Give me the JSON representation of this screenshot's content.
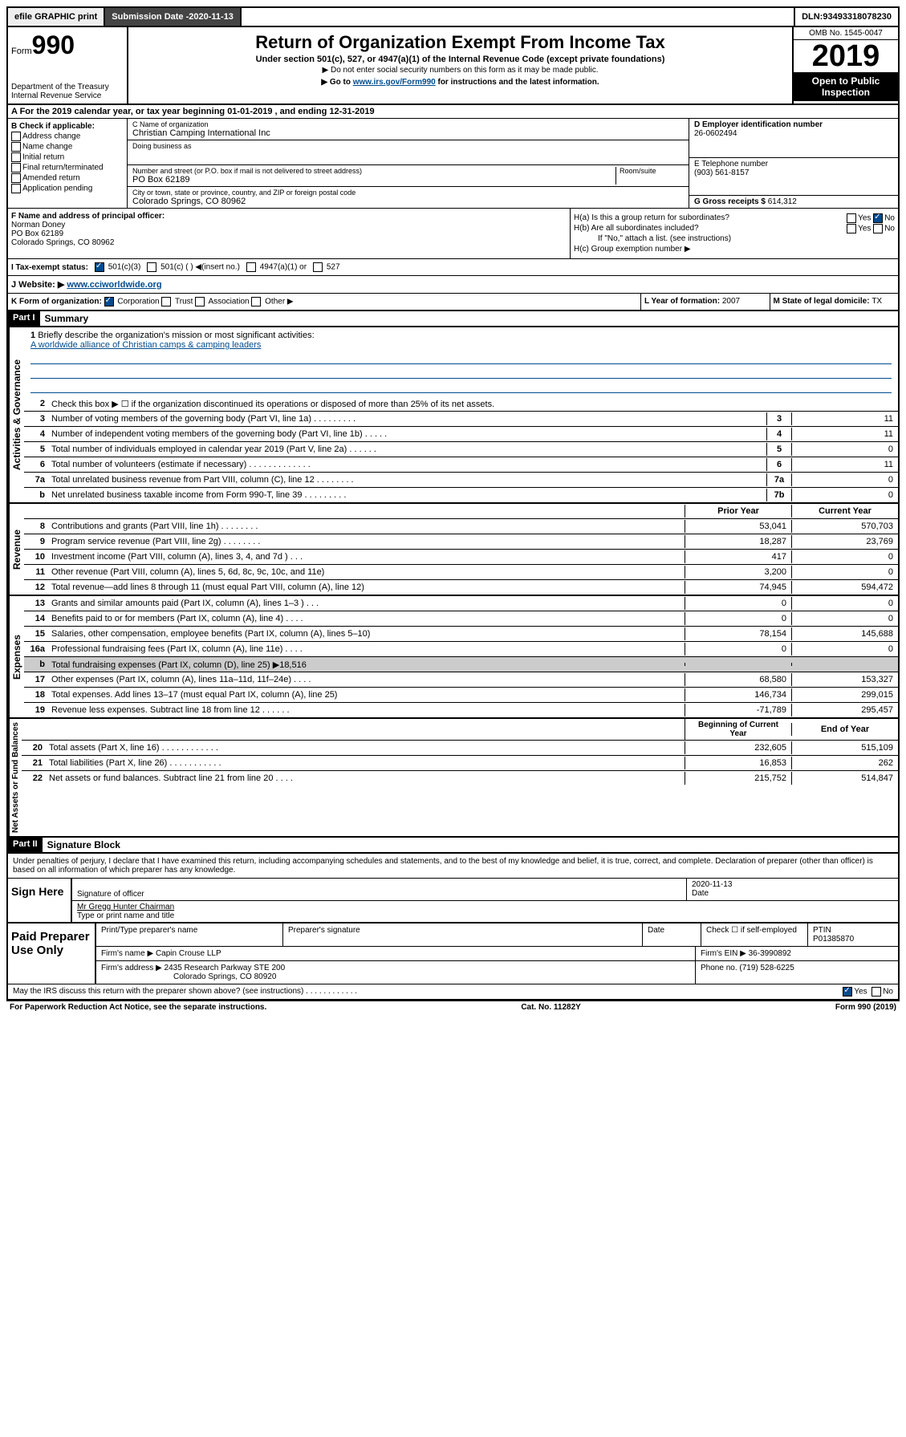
{
  "topbar": {
    "efile": "efile GRAPHIC print",
    "subdate_lbl": "Submission Date - ",
    "subdate": "2020-11-13",
    "dln_lbl": "DLN: ",
    "dln": "93493318078230"
  },
  "header": {
    "form_label": "Form",
    "form_num": "990",
    "dept": "Department of the Treasury\nInternal Revenue Service",
    "title": "Return of Organization Exempt From Income Tax",
    "sub": "Under section 501(c), 527, or 4947(a)(1) of the Internal Revenue Code (except private foundations)",
    "note1": "▶ Do not enter social security numbers on this form as it may be made public.",
    "goto_pre": "▶ Go to ",
    "goto_link": "www.irs.gov/Form990",
    "goto_post": " for instructions and the latest information.",
    "omb": "OMB No. 1545-0047",
    "year": "2019",
    "inspect": "Open to Public Inspection"
  },
  "period": {
    "text": "A For the 2019 calendar year, or tax year beginning 01-01-2019   , and ending 12-31-2019"
  },
  "colB": {
    "title": "B Check if applicable:",
    "items": [
      "Address change",
      "Name change",
      "Initial return",
      "Final return/terminated",
      "Amended return",
      "Application pending"
    ]
  },
  "colC": {
    "name_lbl": "C Name of organization",
    "name": "Christian Camping International Inc",
    "dba_lbl": "Doing business as",
    "dba": "",
    "addr_lbl": "Number and street (or P.O. box if mail is not delivered to street address)",
    "room_lbl": "Room/suite",
    "addr": "PO Box 62189",
    "city_lbl": "City or town, state or province, country, and ZIP or foreign postal code",
    "city": "Colorado Springs, CO  80962"
  },
  "colD": {
    "ein_lbl": "D Employer identification number",
    "ein": "26-0602494",
    "phone_lbl": "E Telephone number",
    "phone": "(903) 561-8157",
    "gross_lbl": "G Gross receipts $ ",
    "gross": "614,312"
  },
  "F": {
    "lbl": "F  Name and address of principal officer:",
    "name": "Norman Doney",
    "addr1": "PO Box 62189",
    "addr2": "Colorado Springs, CO  80962"
  },
  "H": {
    "a": "H(a)  Is this a group return for subordinates?",
    "b": "H(b)  Are all subordinates included?",
    "b_note": "If \"No,\" attach a list. (see instructions)",
    "c": "H(c)  Group exemption number ▶"
  },
  "I": {
    "lbl": "I  Tax-exempt status:",
    "opts": [
      "501(c)(3)",
      "501(c) (  ) ◀(insert no.)",
      "4947(a)(1) or",
      "527"
    ]
  },
  "J": {
    "lbl": "J  Website: ▶",
    "val": "www.cciworldwide.org"
  },
  "K": {
    "lbl": "K Form of organization:",
    "opts": [
      "Corporation",
      "Trust",
      "Association",
      "Other ▶"
    ],
    "L_lbl": "L Year of formation: ",
    "L_val": "2007",
    "M_lbl": "M State of legal domicile: ",
    "M_val": "TX"
  },
  "part1": {
    "label": "Part I",
    "title": "Summary",
    "vtabs": {
      "gov": "Activities & Governance",
      "rev": "Revenue",
      "exp": "Expenses",
      "net": "Net Assets or Fund Balances"
    },
    "q1_lbl": "Briefly describe the organization's mission or most significant activities:",
    "q1_val": "A worldwide alliance of Christian camps & camping leaders",
    "q2": "Check this box ▶ ☐ if the organization discontinued its operations or disposed of more than 25% of its net assets.",
    "lines_gov": [
      {
        "n": "3",
        "d": "Number of voting members of the governing body (Part VI, line 1a)  .   .   .   .   .   .   .   .   .",
        "box": "3",
        "v": "11"
      },
      {
        "n": "4",
        "d": "Number of independent voting members of the governing body (Part VI, line 1b)  .   .   .   .   .",
        "box": "4",
        "v": "11"
      },
      {
        "n": "5",
        "d": "Total number of individuals employed in calendar year 2019 (Part V, line 2a)  .   .   .   .   .   .",
        "box": "5",
        "v": "0"
      },
      {
        "n": "6",
        "d": "Total number of volunteers (estimate if necessary)  .   .   .   .   .   .   .   .   .   .   .   .   .",
        "box": "6",
        "v": "11"
      },
      {
        "n": "7a",
        "d": "Total unrelated business revenue from Part VIII, column (C), line 12  .   .   .   .   .   .   .   .",
        "box": "7a",
        "v": "0"
      },
      {
        "n": "b",
        "d": "Net unrelated business taxable income from Form 990-T, line 39  .   .   .   .   .   .   .   .   .",
        "box": "7b",
        "v": "0"
      }
    ],
    "col_hdrs": {
      "prior": "Prior Year",
      "current": "Current Year"
    },
    "lines_rev": [
      {
        "n": "8",
        "d": "Contributions and grants (Part VIII, line 1h)  .   .   .   .   .   .   .   .",
        "p": "53,041",
        "c": "570,703"
      },
      {
        "n": "9",
        "d": "Program service revenue (Part VIII, line 2g)  .   .   .   .   .   .   .   .",
        "p": "18,287",
        "c": "23,769"
      },
      {
        "n": "10",
        "d": "Investment income (Part VIII, column (A), lines 3, 4, and 7d )  .   .   .",
        "p": "417",
        "c": "0"
      },
      {
        "n": "11",
        "d": "Other revenue (Part VIII, column (A), lines 5, 6d, 8c, 9c, 10c, and 11e)",
        "p": "3,200",
        "c": "0"
      },
      {
        "n": "12",
        "d": "Total revenue—add lines 8 through 11 (must equal Part VIII, column (A), line 12)",
        "p": "74,945",
        "c": "594,472"
      }
    ],
    "lines_exp": [
      {
        "n": "13",
        "d": "Grants and similar amounts paid (Part IX, column (A), lines 1–3 )  .   .   .",
        "p": "0",
        "c": "0"
      },
      {
        "n": "14",
        "d": "Benefits paid to or for members (Part IX, column (A), line 4)  .   .   .   .",
        "p": "0",
        "c": "0"
      },
      {
        "n": "15",
        "d": "Salaries, other compensation, employee benefits (Part IX, column (A), lines 5–10)",
        "p": "78,154",
        "c": "145,688"
      },
      {
        "n": "16a",
        "d": "Professional fundraising fees (Part IX, column (A), line 11e)  .   .   .   .",
        "p": "0",
        "c": "0"
      },
      {
        "n": "b",
        "d": "Total fundraising expenses (Part IX, column (D), line 25) ▶18,516",
        "p": "",
        "c": "",
        "gray": true
      },
      {
        "n": "17",
        "d": "Other expenses (Part IX, column (A), lines 11a–11d, 11f–24e)  .   .   .   .",
        "p": "68,580",
        "c": "153,327"
      },
      {
        "n": "18",
        "d": "Total expenses. Add lines 13–17 (must equal Part IX, column (A), line 25)",
        "p": "146,734",
        "c": "299,015"
      },
      {
        "n": "19",
        "d": "Revenue less expenses. Subtract line 18 from line 12  .   .   .   .   .   .",
        "p": "-71,789",
        "c": "295,457"
      }
    ],
    "net_hdrs": {
      "begin": "Beginning of Current Year",
      "end": "End of Year"
    },
    "lines_net": [
      {
        "n": "20",
        "d": "Total assets (Part X, line 16)  .   .   .   .   .   .   .   .   .   .   .   .",
        "p": "232,605",
        "c": "515,109"
      },
      {
        "n": "21",
        "d": "Total liabilities (Part X, line 26)  .   .   .   .   .   .   .   .   .   .   .",
        "p": "16,853",
        "c": "262"
      },
      {
        "n": "22",
        "d": "Net assets or fund balances. Subtract line 21 from line 20  .   .   .   .",
        "p": "215,752",
        "c": "514,847"
      }
    ]
  },
  "part2": {
    "label": "Part II",
    "title": "Signature Block",
    "perjury": "Under penalties of perjury, I declare that I have examined this return, including accompanying schedules and statements, and to the best of my knowledge and belief, it is true, correct, and complete. Declaration of preparer (other than officer) is based on all information of which preparer has any knowledge.",
    "sign_lbl": "Sign Here",
    "sig_date": "2020-11-13",
    "sig_of": "Signature of officer",
    "date_lbl": "Date",
    "officer": "Mr Gregg Hunter  Chairman",
    "officer_lbl": "Type or print name and title",
    "prep_lbl": "Paid Preparer Use Only",
    "pt_name_lbl": "Print/Type preparer's name",
    "pt_sig_lbl": "Preparer's signature",
    "pt_date_lbl": "Date",
    "pt_self": "Check ☐ if self-employed",
    "ptin_lbl": "PTIN",
    "ptin": "P01385870",
    "firm_name_lbl": "Firm's name    ▶",
    "firm_name": "Capin Crouse LLP",
    "firm_ein_lbl": "Firm's EIN ▶",
    "firm_ein": "36-3990892",
    "firm_addr_lbl": "Firm's address ▶",
    "firm_addr1": "2435 Research Parkway STE 200",
    "firm_addr2": "Colorado Springs, CO  80920",
    "firm_phone_lbl": "Phone no. ",
    "firm_phone": "(719) 528-6225",
    "discuss": "May the IRS discuss this return with the preparer shown above? (see instructions)  .   .   .   .   .   .   .   .   .   .   .   ."
  },
  "footer": {
    "left": "For Paperwork Reduction Act Notice, see the separate instructions.",
    "mid": "Cat. No. 11282Y",
    "right": "Form 990 (2019)"
  },
  "colors": {
    "link": "#004b8d"
  }
}
